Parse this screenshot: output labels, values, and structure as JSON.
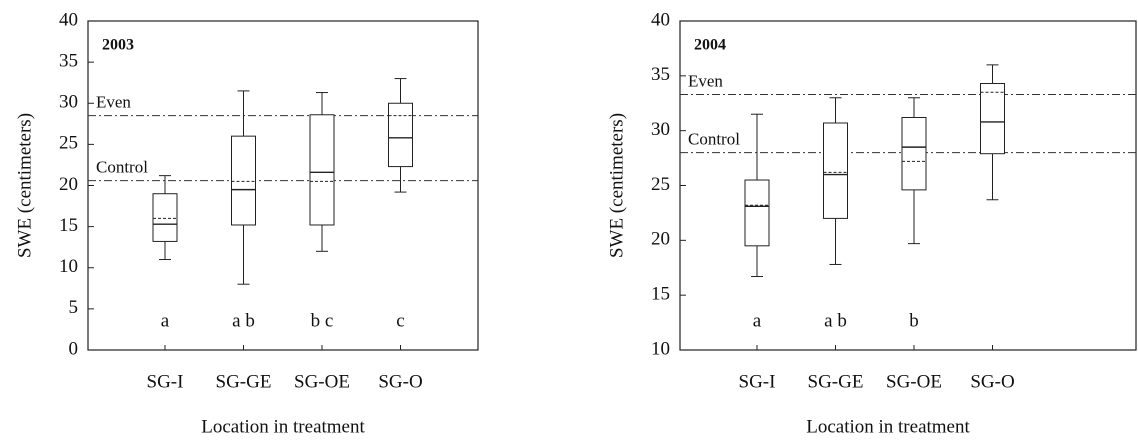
{
  "chart_data": [
    {
      "type": "box",
      "title": "2003",
      "y_label": "SWE (centimeters)",
      "x_label": "Location in treatment",
      "categories": [
        "SG-I",
        "SG-GE",
        "SG-OE",
        "SG-O"
      ],
      "boxes": [
        {
          "min": 11,
          "q1": 13.2,
          "median": 15.3,
          "mean": 16,
          "q3": 19,
          "max": 21.2
        },
        {
          "min": 8,
          "q1": 15.2,
          "median": 19.5,
          "mean": 20.5,
          "q3": 26,
          "max": 31.5
        },
        {
          "min": 12,
          "q1": 15.2,
          "median": 21.6,
          "mean": 20.5,
          "q3": 28.6,
          "max": 31.3
        },
        {
          "min": 19.2,
          "q1": 22.3,
          "median": 25.8,
          "mean": 28.5,
          "q3": 30,
          "max": 33
        }
      ],
      "reference_lines": [
        {
          "label": "Even",
          "value": 28.5
        },
        {
          "label": "Control",
          "value": 20.6
        }
      ],
      "letters": [
        "a",
        "a b",
        "b c",
        "c"
      ],
      "ylim": [
        0,
        40
      ],
      "yticks": [
        0,
        5,
        10,
        15,
        20,
        25,
        30,
        35,
        40
      ]
    },
    {
      "type": "box",
      "title": "2004",
      "y_label": "SWE (centimeters)",
      "x_label": "Location in treatment",
      "categories": [
        "SG-I",
        "SG-GE",
        "SG-OE",
        "SG-O"
      ],
      "boxes": [
        {
          "min": 16.7,
          "q1": 19.5,
          "median": 23.1,
          "mean": 23.2,
          "q3": 25.5,
          "max": 31.5
        },
        {
          "min": 17.8,
          "q1": 22,
          "median": 26,
          "mean": 26.2,
          "q3": 30.7,
          "max": 33
        },
        {
          "min": 19.7,
          "q1": 24.6,
          "median": 28.5,
          "mean": 27.2,
          "q3": 31.2,
          "max": 33
        },
        {
          "min": 23.7,
          "q1": 27.9,
          "median": 30.8,
          "mean": 33.5,
          "q3": 34.3,
          "max": 36
        }
      ],
      "reference_lines": [
        {
          "label": "Even",
          "value": 33.3
        },
        {
          "label": "Control",
          "value": 28
        }
      ],
      "letters": [
        "a",
        "a b",
        "b",
        null
      ],
      "ylim": [
        10,
        40
      ],
      "yticks": [
        10,
        15,
        20,
        25,
        30,
        35,
        40
      ]
    }
  ]
}
